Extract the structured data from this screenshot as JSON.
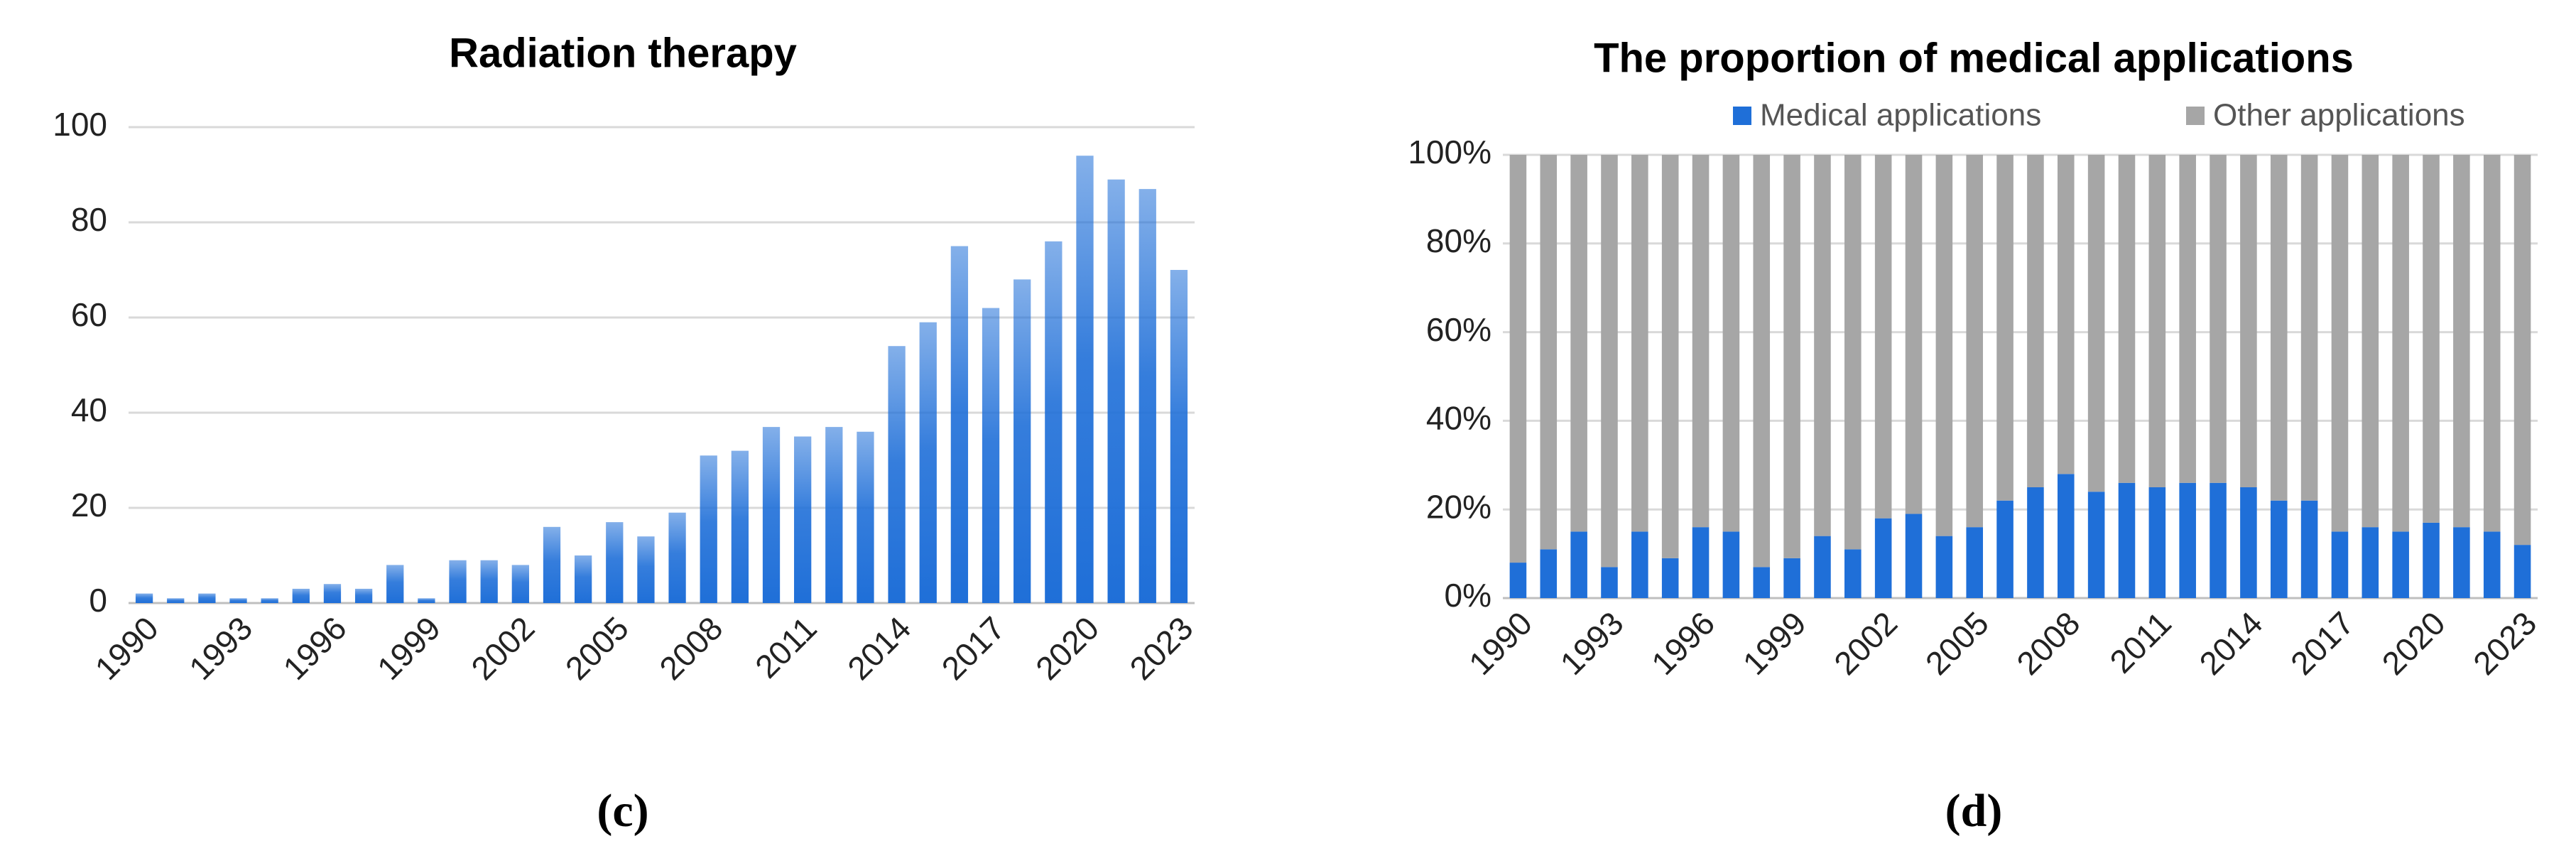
{
  "chart_data": [
    {
      "type": "bar",
      "title": "Radiation therapy",
      "caption": "(c)",
      "color": "#1f6fd8",
      "categories": [
        "1990",
        null,
        null,
        "1993",
        null,
        null,
        "1996",
        null,
        null,
        "1999",
        null,
        null,
        "2002",
        null,
        null,
        "2005",
        null,
        null,
        "2008",
        null,
        null,
        "2011",
        null,
        null,
        "2014",
        null,
        null,
        "2017",
        null,
        null,
        "2020",
        null,
        null,
        "2023"
      ],
      "values": [
        2,
        1,
        2,
        1,
        1,
        3,
        4,
        3,
        8,
        1,
        9,
        9,
        8,
        16,
        10,
        17,
        14,
        19,
        31,
        32,
        37,
        35,
        37,
        36,
        54,
        59,
        75,
        62,
        68,
        76,
        94,
        89,
        87,
        70
      ],
      "ylim": [
        0,
        100
      ],
      "yticks": [
        0,
        20,
        40,
        60,
        80,
        100
      ],
      "grid": true
    },
    {
      "type": "stacked_bar",
      "title": "The proportion of medical applications",
      "caption": "(d)",
      "categories": [
        "1990",
        null,
        null,
        "1993",
        null,
        null,
        "1996",
        null,
        null,
        "1999",
        null,
        null,
        "2002",
        null,
        null,
        "2005",
        null,
        null,
        "2008",
        null,
        null,
        "2011",
        null,
        null,
        "2014",
        null,
        null,
        "2017",
        null,
        null,
        "2020",
        null,
        null,
        "2023"
      ],
      "series": [
        {
          "name": "Medical applications",
          "color": "#1f6fd8",
          "values": [
            8,
            11,
            15,
            7,
            15,
            9,
            16,
            15,
            7,
            9,
            14,
            11,
            18,
            19,
            14,
            16,
            22,
            25,
            28,
            24,
            26,
            25,
            26,
            26,
            25,
            22,
            22,
            15,
            16,
            15,
            17,
            16,
            15,
            12
          ]
        },
        {
          "name": "Other applications",
          "color": "#a6a6a6",
          "values": [
            92,
            89,
            85,
            93,
            85,
            91,
            84,
            85,
            93,
            91,
            86,
            89,
            82,
            81,
            86,
            84,
            78,
            75,
            72,
            76,
            74,
            75,
            74,
            74,
            75,
            78,
            78,
            85,
            84,
            85,
            83,
            84,
            85,
            88
          ]
        }
      ],
      "ylim": [
        0,
        100
      ],
      "yticks": [
        {
          "value": 0,
          "label": "0%"
        },
        {
          "value": 20,
          "label": "20%"
        },
        {
          "value": 40,
          "label": "40%"
        },
        {
          "value": 60,
          "label": "60%"
        },
        {
          "value": 80,
          "label": "80%"
        },
        {
          "value": 100,
          "label": "100%"
        }
      ],
      "grid": true,
      "legend": "top-right"
    }
  ]
}
